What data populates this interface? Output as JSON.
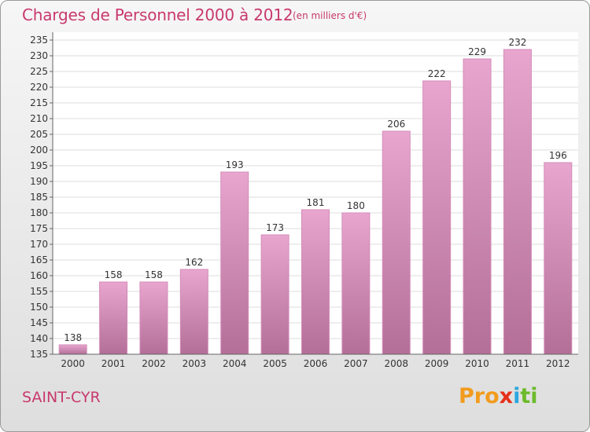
{
  "header": {
    "title": "Charges de Personnel 2000 à 2012",
    "subtitle": "(en milliers d'€)"
  },
  "footer": {
    "commune": "SAINT-CYR",
    "logo_letters": [
      "Pro",
      "x",
      "i",
      "ti"
    ]
  },
  "colors": {
    "accent": "#c8396d",
    "bar_top": "#e8a6cf",
    "bar_bottom": "#b36f98"
  },
  "chart_data": {
    "type": "bar",
    "categories": [
      "2000",
      "2001",
      "2002",
      "2003",
      "2004",
      "2005",
      "2006",
      "2007",
      "2008",
      "2009",
      "2010",
      "2011",
      "2012"
    ],
    "values": [
      138,
      158,
      158,
      162,
      193,
      173,
      181,
      180,
      206,
      222,
      229,
      232,
      196
    ],
    "ylim": [
      135,
      235
    ],
    "yticks": [
      135,
      140,
      145,
      150,
      155,
      160,
      165,
      170,
      175,
      180,
      185,
      190,
      195,
      200,
      205,
      210,
      215,
      220,
      225,
      230,
      235
    ],
    "grid": true
  }
}
